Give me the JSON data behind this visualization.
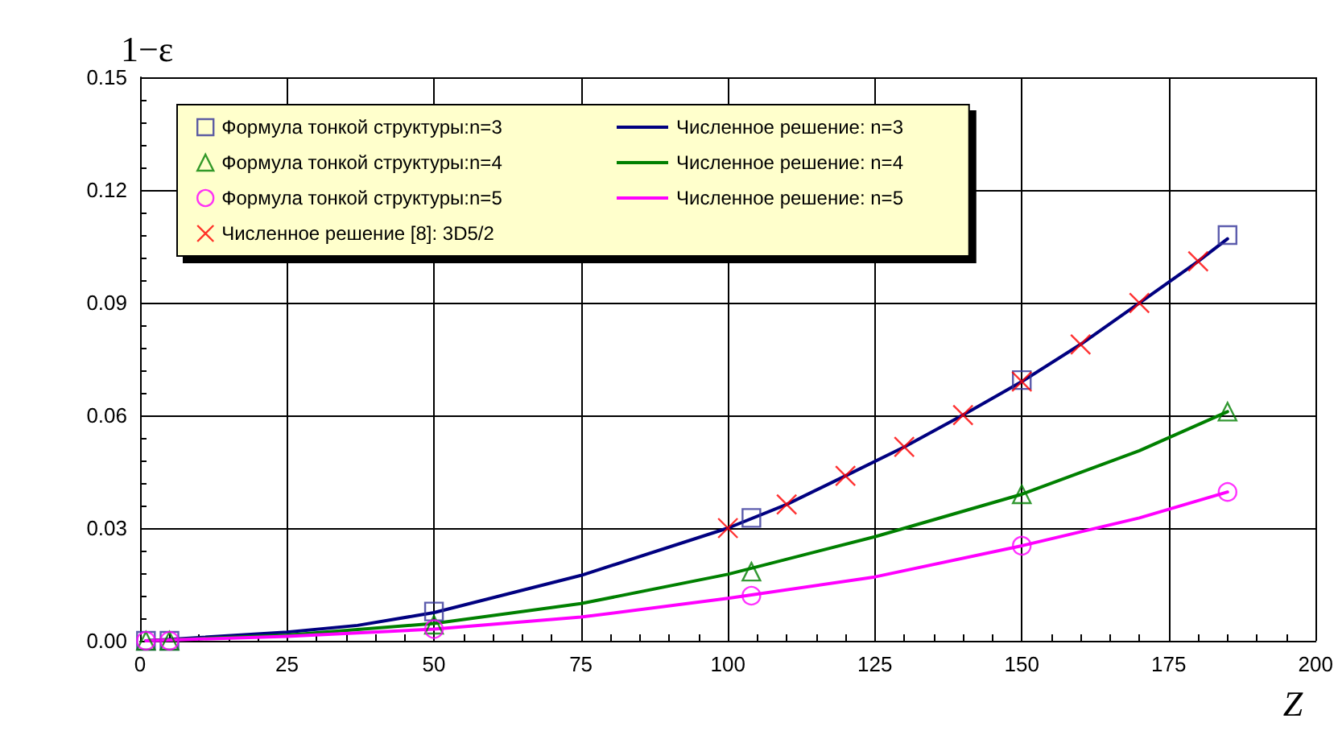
{
  "chart_data": {
    "type": "line",
    "xlabel": "Z",
    "ylabel": "1−ε",
    "xlim": [
      0,
      200
    ],
    "xticks": [
      0,
      25,
      50,
      75,
      100,
      125,
      150,
      175,
      200
    ],
    "ylim": [
      0,
      0.15
    ],
    "yticks": [
      {
        "value": 0,
        "label": "0.00"
      },
      {
        "value": 0.03,
        "label": "0.03"
      },
      {
        "value": 0.06,
        "label": "0.06"
      },
      {
        "value": 0.09,
        "label": "0.09"
      },
      {
        "value": 0.12,
        "label": "0.12"
      },
      {
        "value": 0.15,
        "label": "0.15"
      }
    ],
    "grid": true,
    "legend": "top left",
    "series": [
      {
        "name": "Формула тонкой структуры:n=3",
        "type": "scatter",
        "marker": "square",
        "color": "#333399",
        "x": [
          1,
          5,
          50,
          104,
          150,
          185
        ],
        "values": [
          0,
          0,
          0.0078,
          0.0327,
          0.0694,
          0.108
        ]
      },
      {
        "name": "Формула тонкой структуры:n=4",
        "type": "scatter",
        "marker": "triangle",
        "color": "#008000",
        "x": [
          1,
          5,
          50,
          104,
          150,
          185
        ],
        "values": [
          0,
          0,
          0.0043,
          0.0184,
          0.039,
          0.061
        ]
      },
      {
        "name": "Формула тонкой структуры:n=5",
        "type": "scatter",
        "marker": "circle",
        "color": "#ff00ff",
        "x": [
          1,
          5,
          50,
          104,
          150,
          185
        ],
        "values": [
          0,
          0,
          0.0031,
          0.012,
          0.0253,
          0.0396
        ]
      },
      {
        "name": "Численное решение [8]: 3D5/2",
        "type": "scatter",
        "marker": "cross",
        "color": "#ff0000",
        "x": [
          100,
          110,
          120,
          130,
          140,
          150,
          160,
          170,
          180
        ],
        "values": [
          0.03,
          0.0363,
          0.0439,
          0.0516,
          0.0601,
          0.069,
          0.0789,
          0.0899,
          0.101
        ]
      },
      {
        "name": "Численное решение: n=3",
        "marker": "none",
        "color": "#000080",
        "x": [
          1,
          25,
          37,
          50,
          75,
          100,
          110,
          120,
          130,
          140,
          150,
          160,
          170,
          180,
          185
        ],
        "values": [
          0,
          0.0023,
          0.0041,
          0.0075,
          0.0174,
          0.03,
          0.0363,
          0.0439,
          0.0516,
          0.0601,
          0.069,
          0.0789,
          0.0899,
          0.101,
          0.107
        ]
      },
      {
        "name": "Численное решение: n=4",
        "marker": "none",
        "color": "#008000",
        "x": [
          1,
          25,
          50,
          75,
          100,
          125,
          150,
          170,
          185
        ],
        "values": [
          0,
          0.0015,
          0.0046,
          0.0099,
          0.0177,
          0.0277,
          0.039,
          0.0506,
          0.061
        ]
      },
      {
        "name": "Численное решение: n=5",
        "marker": "none",
        "color": "#ff00ff",
        "x": [
          1,
          25,
          50,
          75,
          100,
          125,
          150,
          170,
          185
        ],
        "values": [
          0,
          0.0012,
          0.0031,
          0.0063,
          0.0113,
          0.017,
          0.0253,
          0.0327,
          0.0396
        ]
      }
    ]
  }
}
